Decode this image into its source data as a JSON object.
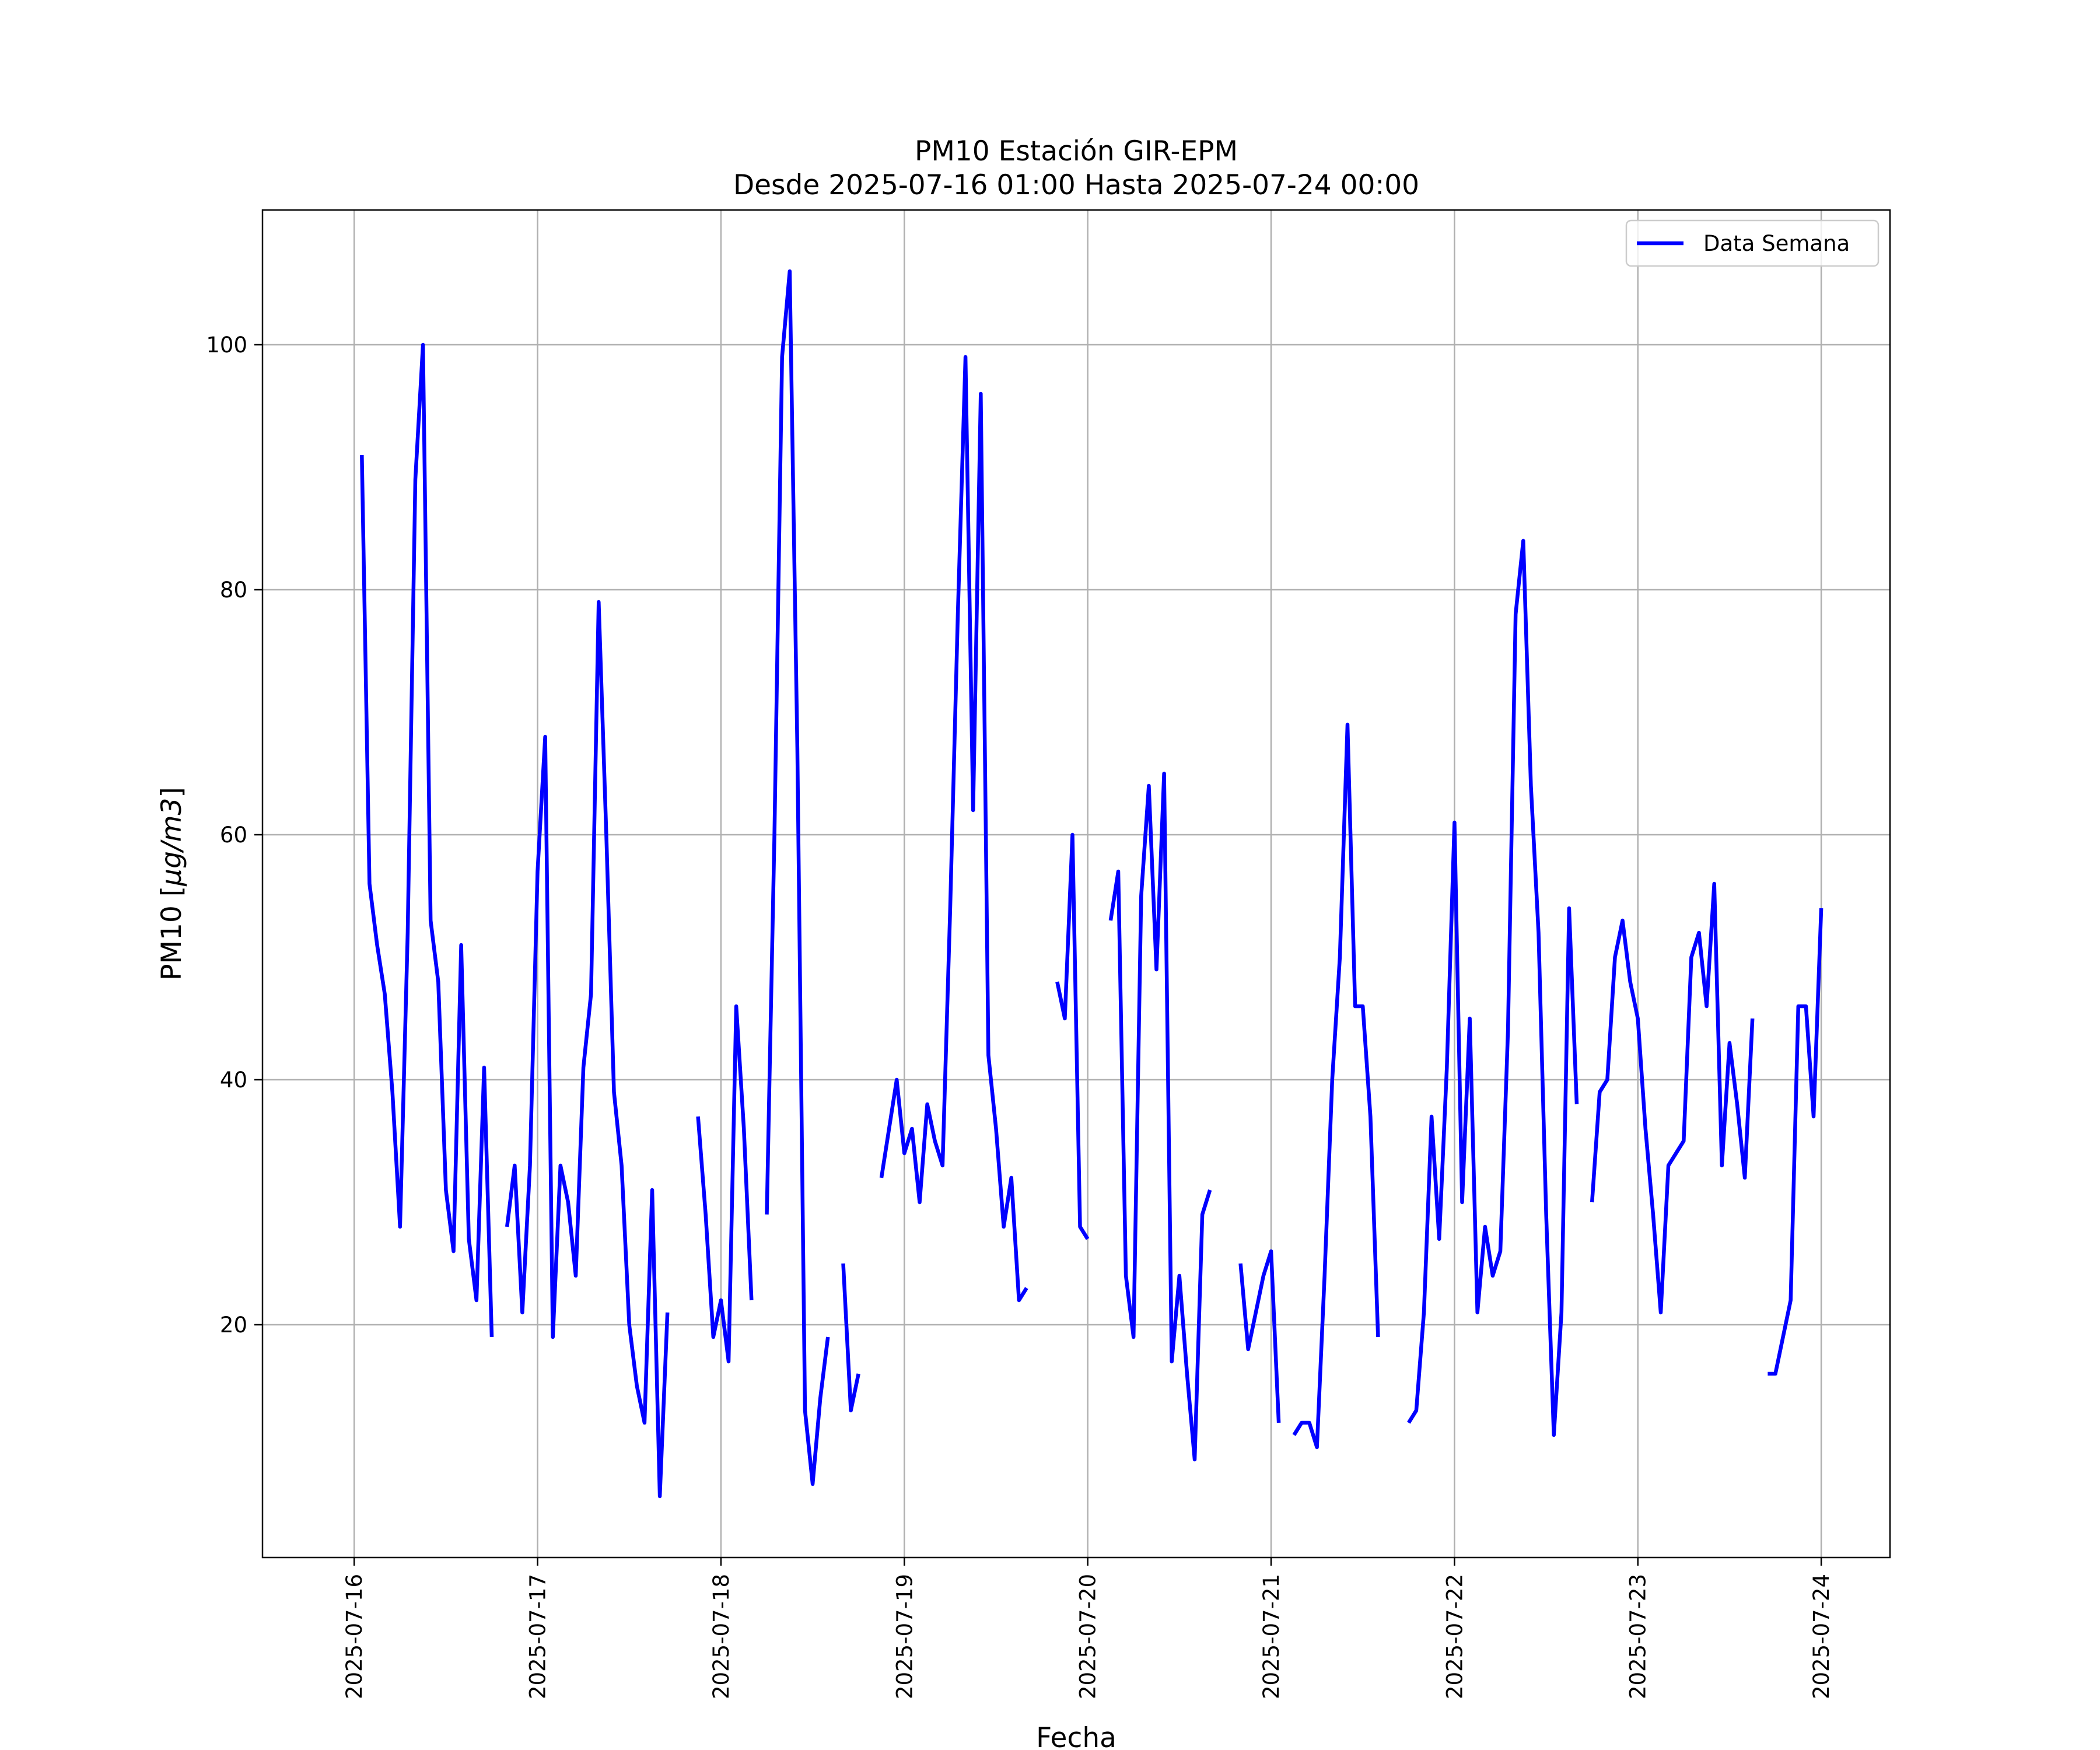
{
  "chart_data": {
    "type": "line",
    "title": "PM10 Estación GIR-EPM",
    "subtitle": "Desde 2025-07-16 01:00 Hasta 2025-07-24 00:00",
    "xlabel": "Fecha",
    "ylabel": "PM10 [μg/m3]",
    "x_type": "datetime",
    "xlim": [
      "2025-07-15 12:00",
      "2025-07-24 09:00"
    ],
    "ylim": [
      1,
      111
    ],
    "x_ticks": [
      "2025-07-16",
      "2025-07-17",
      "2025-07-18",
      "2025-07-19",
      "2025-07-20",
      "2025-07-21",
      "2025-07-22",
      "2025-07-23",
      "2025-07-24"
    ],
    "y_ticks": [
      20,
      40,
      60,
      80,
      100
    ],
    "grid": true,
    "legend_position": "top-right",
    "series": [
      {
        "name": "Data Semana",
        "color": "#0000ff",
        "points": [
          [
            "2025-07-16 01:00",
            91
          ],
          [
            "2025-07-16 02:00",
            56
          ],
          [
            "2025-07-16 03:00",
            51
          ],
          [
            "2025-07-16 04:00",
            47
          ],
          [
            "2025-07-16 05:00",
            39
          ],
          [
            "2025-07-16 06:00",
            28
          ],
          [
            "2025-07-16 07:00",
            52
          ],
          [
            "2025-07-16 08:00",
            89
          ],
          [
            "2025-07-16 09:00",
            100
          ],
          [
            "2025-07-16 10:00",
            53
          ],
          [
            "2025-07-16 11:00",
            48
          ],
          [
            "2025-07-16 12:00",
            31
          ],
          [
            "2025-07-16 13:00",
            26
          ],
          [
            "2025-07-16 14:00",
            51
          ],
          [
            "2025-07-16 15:00",
            27
          ],
          [
            "2025-07-16 16:00",
            22
          ],
          [
            "2025-07-16 17:00",
            41
          ],
          [
            "2025-07-16 18:00",
            19
          ],
          [
            "2025-07-16 19:00",
            null
          ],
          [
            "2025-07-16 20:00",
            28
          ],
          [
            "2025-07-16 21:00",
            33
          ],
          [
            "2025-07-16 22:00",
            21
          ],
          [
            "2025-07-16 23:00",
            33
          ],
          [
            "2025-07-17 00:00",
            57
          ],
          [
            "2025-07-17 01:00",
            68
          ],
          [
            "2025-07-17 02:00",
            19
          ],
          [
            "2025-07-17 03:00",
            33
          ],
          [
            "2025-07-17 04:00",
            30
          ],
          [
            "2025-07-17 05:00",
            24
          ],
          [
            "2025-07-17 06:00",
            41
          ],
          [
            "2025-07-17 07:00",
            47
          ],
          [
            "2025-07-17 08:00",
            79
          ],
          [
            "2025-07-17 09:00",
            60
          ],
          [
            "2025-07-17 10:00",
            39
          ],
          [
            "2025-07-17 11:00",
            33
          ],
          [
            "2025-07-17 12:00",
            20
          ],
          [
            "2025-07-17 13:00",
            15
          ],
          [
            "2025-07-17 14:00",
            12
          ],
          [
            "2025-07-17 15:00",
            31
          ],
          [
            "2025-07-17 16:00",
            6
          ],
          [
            "2025-07-17 17:00",
            21
          ],
          [
            "2025-07-17 18:00",
            null
          ],
          [
            "2025-07-17 21:00",
            37
          ],
          [
            "2025-07-17 22:00",
            29
          ],
          [
            "2025-07-17 23:00",
            19
          ],
          [
            "2025-07-18 00:00",
            22
          ],
          [
            "2025-07-18 01:00",
            17
          ],
          [
            "2025-07-18 02:00",
            46
          ],
          [
            "2025-07-18 03:00",
            36
          ],
          [
            "2025-07-18 04:00",
            22
          ],
          [
            "2025-07-18 05:00",
            null
          ],
          [
            "2025-07-18 06:00",
            29
          ],
          [
            "2025-07-18 07:00",
            60
          ],
          [
            "2025-07-18 08:00",
            99
          ],
          [
            "2025-07-18 09:00",
            106
          ],
          [
            "2025-07-18 10:00",
            67
          ],
          [
            "2025-07-18 11:00",
            13
          ],
          [
            "2025-07-18 12:00",
            7
          ],
          [
            "2025-07-18 13:00",
            14
          ],
          [
            "2025-07-18 14:00",
            19
          ],
          [
            "2025-07-18 15:00",
            null
          ],
          [
            "2025-07-18 16:00",
            25
          ],
          [
            "2025-07-18 17:00",
            13
          ],
          [
            "2025-07-18 18:00",
            16
          ],
          [
            "2025-07-18 19:00",
            null
          ],
          [
            "2025-07-18 21:00",
            32
          ],
          [
            "2025-07-18 22:00",
            36
          ],
          [
            "2025-07-18 23:00",
            40
          ],
          [
            "2025-07-19 00:00",
            34
          ],
          [
            "2025-07-19 01:00",
            36
          ],
          [
            "2025-07-19 02:00",
            30
          ],
          [
            "2025-07-19 03:00",
            38
          ],
          [
            "2025-07-19 04:00",
            35
          ],
          [
            "2025-07-19 05:00",
            33
          ],
          [
            "2025-07-19 06:00",
            54
          ],
          [
            "2025-07-19 07:00",
            78
          ],
          [
            "2025-07-19 08:00",
            99
          ],
          [
            "2025-07-19 09:00",
            62
          ],
          [
            "2025-07-19 10:00",
            96
          ],
          [
            "2025-07-19 11:00",
            42
          ],
          [
            "2025-07-19 12:00",
            36
          ],
          [
            "2025-07-19 13:00",
            28
          ],
          [
            "2025-07-19 14:00",
            32
          ],
          [
            "2025-07-19 15:00",
            22
          ],
          [
            "2025-07-19 16:00",
            23
          ],
          [
            "2025-07-19 17:00",
            null
          ],
          [
            "2025-07-19 20:00",
            48
          ],
          [
            "2025-07-19 21:00",
            45
          ],
          [
            "2025-07-19 22:00",
            60
          ],
          [
            "2025-07-19 23:00",
            28
          ],
          [
            "2025-07-20 00:00",
            27
          ],
          [
            "2025-07-20 01:00",
            null
          ],
          [
            "2025-07-20 03:00",
            53
          ],
          [
            "2025-07-20 04:00",
            57
          ],
          [
            "2025-07-20 05:00",
            24
          ],
          [
            "2025-07-20 06:00",
            19
          ],
          [
            "2025-07-20 07:00",
            55
          ],
          [
            "2025-07-20 08:00",
            64
          ],
          [
            "2025-07-20 09:00",
            49
          ],
          [
            "2025-07-20 10:00",
            65
          ],
          [
            "2025-07-20 11:00",
            17
          ],
          [
            "2025-07-20 12:00",
            24
          ],
          [
            "2025-07-20 13:00",
            16
          ],
          [
            "2025-07-20 14:00",
            9
          ],
          [
            "2025-07-20 15:00",
            29
          ],
          [
            "2025-07-20 16:00",
            31
          ],
          [
            "2025-07-20 17:00",
            null
          ],
          [
            "2025-07-20 20:00",
            25
          ],
          [
            "2025-07-20 21:00",
            18
          ],
          [
            "2025-07-20 22:00",
            21
          ],
          [
            "2025-07-20 23:00",
            24
          ],
          [
            "2025-07-21 00:00",
            26
          ],
          [
            "2025-07-21 01:00",
            12
          ],
          [
            "2025-07-21 02:00",
            null
          ],
          [
            "2025-07-21 03:00",
            11
          ],
          [
            "2025-07-21 04:00",
            12
          ],
          [
            "2025-07-21 05:00",
            12
          ],
          [
            "2025-07-21 06:00",
            10
          ],
          [
            "2025-07-21 07:00",
            24
          ],
          [
            "2025-07-21 08:00",
            40
          ],
          [
            "2025-07-21 09:00",
            50
          ],
          [
            "2025-07-21 10:00",
            69
          ],
          [
            "2025-07-21 11:00",
            46
          ],
          [
            "2025-07-21 12:00",
            46
          ],
          [
            "2025-07-21 13:00",
            37
          ],
          [
            "2025-07-21 14:00",
            19
          ],
          [
            "2025-07-21 15:00",
            null
          ],
          [
            "2025-07-21 18:00",
            12
          ],
          [
            "2025-07-21 19:00",
            13
          ],
          [
            "2025-07-21 20:00",
            21
          ],
          [
            "2025-07-21 21:00",
            37
          ],
          [
            "2025-07-21 22:00",
            27
          ],
          [
            "2025-07-21 23:00",
            41
          ],
          [
            "2025-07-22 00:00",
            61
          ],
          [
            "2025-07-22 01:00",
            30
          ],
          [
            "2025-07-22 02:00",
            45
          ],
          [
            "2025-07-22 03:00",
            21
          ],
          [
            "2025-07-22 04:00",
            28
          ],
          [
            "2025-07-22 05:00",
            24
          ],
          [
            "2025-07-22 06:00",
            26
          ],
          [
            "2025-07-22 07:00",
            44
          ],
          [
            "2025-07-22 08:00",
            78
          ],
          [
            "2025-07-22 09:00",
            84
          ],
          [
            "2025-07-22 10:00",
            64
          ],
          [
            "2025-07-22 11:00",
            52
          ],
          [
            "2025-07-22 12:00",
            29
          ],
          [
            "2025-07-22 13:00",
            11
          ],
          [
            "2025-07-22 14:00",
            21
          ],
          [
            "2025-07-22 15:00",
            54
          ],
          [
            "2025-07-22 16:00",
            38
          ],
          [
            "2025-07-22 17:00",
            null
          ],
          [
            "2025-07-22 18:00",
            30
          ],
          [
            "2025-07-22 19:00",
            39
          ],
          [
            "2025-07-22 20:00",
            40
          ],
          [
            "2025-07-22 21:00",
            50
          ],
          [
            "2025-07-22 22:00",
            53
          ],
          [
            "2025-07-22 23:00",
            48
          ],
          [
            "2025-07-23 00:00",
            45
          ],
          [
            "2025-07-23 01:00",
            36
          ],
          [
            "2025-07-23 02:00",
            29
          ],
          [
            "2025-07-23 03:00",
            21
          ],
          [
            "2025-07-23 04:00",
            33
          ],
          [
            "2025-07-23 05:00",
            34
          ],
          [
            "2025-07-23 06:00",
            35
          ],
          [
            "2025-07-23 07:00",
            50
          ],
          [
            "2025-07-23 08:00",
            52
          ],
          [
            "2025-07-23 09:00",
            46
          ],
          [
            "2025-07-23 10:00",
            56
          ],
          [
            "2025-07-23 11:00",
            33
          ],
          [
            "2025-07-23 12:00",
            43
          ],
          [
            "2025-07-23 13:00",
            38
          ],
          [
            "2025-07-23 14:00",
            32
          ],
          [
            "2025-07-23 15:00",
            45
          ],
          [
            "2025-07-23 16:00",
            null
          ],
          [
            "2025-07-23 17:00",
            16
          ],
          [
            "2025-07-23 18:00",
            16
          ],
          [
            "2025-07-23 19:00",
            19
          ],
          [
            "2025-07-23 20:00",
            22
          ],
          [
            "2025-07-23 21:00",
            46
          ],
          [
            "2025-07-23 22:00",
            46
          ],
          [
            "2025-07-23 23:00",
            37
          ],
          [
            "2025-07-24 00:00",
            54
          ]
        ]
      }
    ]
  }
}
